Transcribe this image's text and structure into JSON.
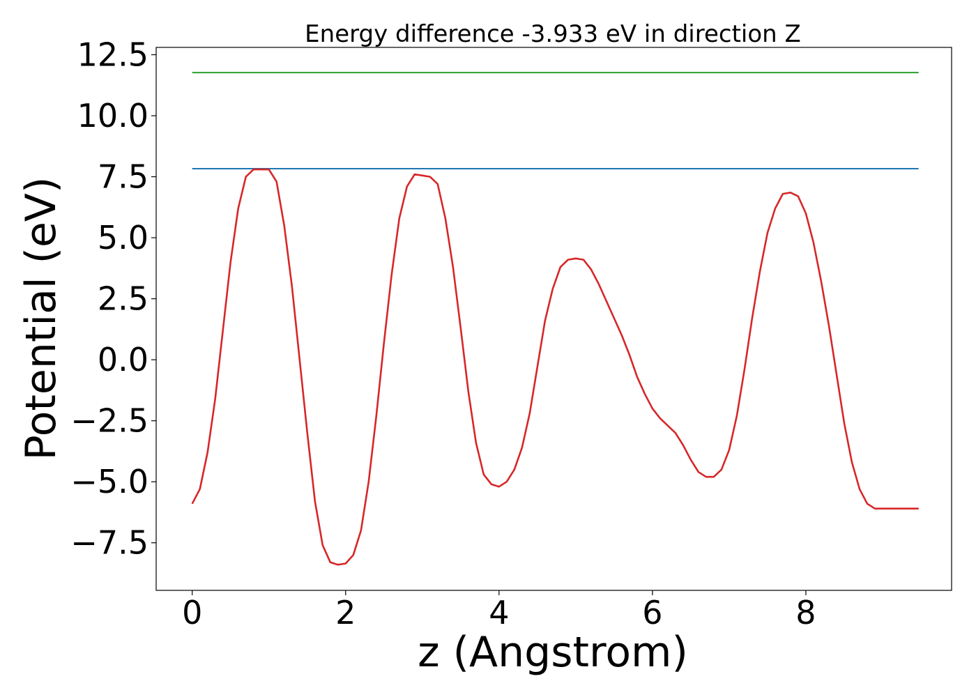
{
  "chart_data": {
    "type": "line",
    "title": "Energy difference -3.933 eV in direction Z",
    "xlabel": "z (Angstrom)",
    "ylabel": "Potential (eV)",
    "xlim": [
      -0.47,
      9.9
    ],
    "ylim": [
      -9.45,
      12.8
    ],
    "xticks": [
      0,
      2,
      4,
      6,
      8
    ],
    "xtick_labels": [
      "0",
      "2",
      "4",
      "6",
      "8"
    ],
    "yticks": [
      -7.5,
      -5.0,
      -2.5,
      0.0,
      2.5,
      5.0,
      7.5,
      10.0,
      12.5
    ],
    "ytick_labels": [
      "−7.5",
      "−5.0",
      "−2.5",
      "0.0",
      "2.5",
      "5.0",
      "7.5",
      "10.0",
      "12.5"
    ],
    "grid": false,
    "series": [
      {
        "color": "#2ca02c",
        "x": [
          0,
          9.47
        ],
        "y": [
          11.77,
          11.77
        ]
      },
      {
        "color": "#1f77b4",
        "x": [
          0,
          9.47
        ],
        "y": [
          7.83,
          7.83
        ]
      },
      {
        "color": "#d62728",
        "x": [
          0,
          0.1,
          0.2,
          0.3,
          0.4,
          0.5,
          0.6,
          0.7,
          0.8,
          0.9,
          1.0,
          1.1,
          1.2,
          1.3,
          1.4,
          1.5,
          1.6,
          1.7,
          1.8,
          1.9,
          2.0,
          2.1,
          2.2,
          2.3,
          2.4,
          2.5,
          2.6,
          2.7,
          2.8,
          2.9,
          3.0,
          3.1,
          3.2,
          3.3,
          3.4,
          3.5,
          3.6,
          3.7,
          3.8,
          3.9,
          4.0,
          4.1,
          4.2,
          4.3,
          4.4,
          4.5,
          4.6,
          4.7,
          4.8,
          4.9,
          5.0,
          5.1,
          5.2,
          5.3,
          5.4,
          5.5,
          5.6,
          5.7,
          5.8,
          5.9,
          6.0,
          6.1,
          6.2,
          6.3,
          6.4,
          6.5,
          6.6,
          6.7,
          6.8,
          6.9,
          7.0,
          7.1,
          7.2,
          7.3,
          7.4,
          7.5,
          7.6,
          7.7,
          7.8,
          7.9,
          8.0,
          8.1,
          8.2,
          8.3,
          8.4,
          8.5,
          8.6,
          8.7,
          8.8,
          8.9,
          9.0,
          9.1,
          9.2,
          9.3,
          9.4,
          9.47
        ],
        "y": [
          -5.9,
          -5.3,
          -3.8,
          -1.6,
          1.2,
          4.0,
          6.2,
          7.5,
          7.8,
          7.8,
          7.8,
          7.3,
          5.5,
          3.0,
          0.0,
          -3.0,
          -5.8,
          -7.6,
          -8.3,
          -8.4,
          -8.35,
          -8.0,
          -7.0,
          -5.0,
          -2.3,
          0.7,
          3.5,
          5.8,
          7.1,
          7.6,
          7.55,
          7.5,
          7.2,
          5.8,
          3.8,
          1.3,
          -1.3,
          -3.4,
          -4.7,
          -5.1,
          -5.2,
          -5.0,
          -4.5,
          -3.6,
          -2.2,
          -0.3,
          1.6,
          2.9,
          3.8,
          4.1,
          4.15,
          4.1,
          3.7,
          3.1,
          2.4,
          1.7,
          1.0,
          0.2,
          -0.7,
          -1.4,
          -2.0,
          -2.4,
          -2.7,
          -3.0,
          -3.5,
          -4.1,
          -4.6,
          -4.8,
          -4.8,
          -4.5,
          -3.7,
          -2.3,
          -0.4,
          1.7,
          3.6,
          5.2,
          6.2,
          6.8,
          6.85,
          6.7,
          6.0,
          4.8,
          3.2,
          1.4,
          -0.6,
          -2.6,
          -4.2,
          -5.3,
          -5.9,
          -6.1,
          -6.1,
          -6.1,
          -6.1,
          -6.1,
          -6.1,
          -6.1
        ]
      }
    ]
  }
}
